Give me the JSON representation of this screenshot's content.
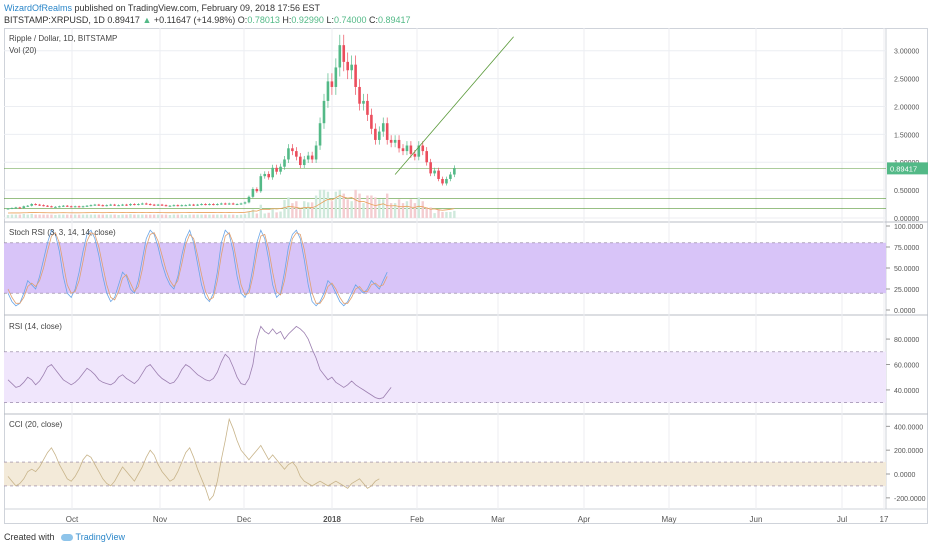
{
  "header": {
    "author": "WizardOfRealms",
    "published": "published on TradingView.com, February 09, 2018 17:56 EST",
    "symbol": "BITSTAMP:XRPUSD, 1D",
    "last": "0.89417",
    "change": "+0.11647 (+14.98%)",
    "open_label": "O:",
    "open": "0.78013",
    "high_label": "H:",
    "high": "0.92990",
    "low_label": "L:",
    "low": "0.74000",
    "close_label": "C:",
    "close": "0.89417"
  },
  "colors": {
    "up": "#53b987",
    "down": "#eb4d5c",
    "grid": "#eceef2",
    "band": "#d8c4f8",
    "rsi_band": "#f0e6fc",
    "cci_band": "#f3ead9",
    "stoch_k": "#6aa6e8",
    "stoch_d": "#e0a070",
    "rsi": "#9c7fb0",
    "cci": "#c8b48a",
    "trend": "#5a9a3a",
    "price_tag": "#53b987"
  },
  "footer": {
    "created_with": "Created with",
    "brand": "TradingView",
    "logo_icon": "cloud-icon"
  },
  "chart_data": [
    {
      "type": "candlestick",
      "title": "Ripple / Dollar, 1D, BITSTAMP",
      "subtitle": "Vol (20)",
      "yticks": [
        "3.00000",
        "2.50000",
        "2.00000",
        "1.50000",
        "1.00000",
        "0.50000",
        "0.00000"
      ],
      "ylim": [
        0,
        3.3
      ],
      "last_price_tag": "0.89417",
      "horizontal_levels": [
        0.89,
        0.35,
        0.17
      ],
      "trendline": [
        [
          98,
          0.78
        ],
        [
          128,
          3.25
        ]
      ],
      "volume_ma_color": "#e8a05a",
      "weekly_close": [
        0.17,
        0.18,
        0.19,
        0.18,
        0.21,
        0.22,
        0.25,
        0.24,
        0.23,
        0.22,
        0.21,
        0.2,
        0.2,
        0.21,
        0.22,
        0.21,
        0.2,
        0.21,
        0.2,
        0.21,
        0.22,
        0.23,
        0.24,
        0.23,
        0.22,
        0.23,
        0.24,
        0.23,
        0.23,
        0.24,
        0.23,
        0.25,
        0.24,
        0.25,
        0.26,
        0.25,
        0.24,
        0.23,
        0.24,
        0.23,
        0.22,
        0.22,
        0.23,
        0.22,
        0.23,
        0.23,
        0.24,
        0.23,
        0.24,
        0.25,
        0.24,
        0.25,
        0.24,
        0.25,
        0.26,
        0.25,
        0.26,
        0.25,
        0.25,
        0.26,
        0.28,
        0.38,
        0.52,
        0.48,
        0.75,
        0.79,
        0.73,
        0.9,
        0.83,
        0.92,
        1.05,
        1.25,
        1.2,
        1.1,
        0.95,
        1.05,
        1.12,
        1.05,
        1.3,
        1.7,
        2.1,
        2.45,
        2.35,
        2.7,
        3.1,
        2.8,
        2.65,
        2.75,
        2.35,
        2.05,
        2.1,
        1.85,
        1.6,
        1.4,
        1.55,
        1.7,
        1.4,
        1.35,
        1.4,
        1.25,
        1.2,
        1.3,
        1.15,
        1.1,
        1.3,
        1.2,
        1.0,
        0.8,
        0.85,
        0.7,
        0.62,
        0.7,
        0.78,
        0.89
      ]
    },
    {
      "type": "line",
      "title": "Stoch RSI (3, 3, 14, 14, close)",
      "yticks": [
        "100.0000",
        "75.0000",
        "50.0000",
        "25.0000",
        "0.0000"
      ],
      "ylim": [
        0,
        100
      ],
      "band": [
        20,
        80
      ],
      "series": [
        {
          "values": [
            20,
            10,
            5,
            8,
            20,
            35,
            30,
            25,
            40,
            60,
            80,
            95,
            90,
            70,
            40,
            20,
            15,
            25,
            45,
            70,
            90,
            95,
            85,
            65,
            40,
            20,
            10,
            15,
            30,
            45,
            40,
            25,
            20,
            35,
            60,
            85,
            95,
            90,
            75,
            55,
            40,
            30,
            25,
            40,
            65,
            85,
            95,
            80,
            55,
            30,
            15,
            10,
            20,
            45,
            80,
            95,
            90,
            70,
            40,
            20,
            15,
            25,
            50,
            80,
            95,
            85,
            60,
            30,
            15,
            20,
            45,
            75,
            90,
            95,
            85,
            60,
            30,
            10,
            5,
            10,
            20,
            35,
            30,
            20,
            10,
            5,
            10,
            20,
            30,
            25,
            20,
            25,
            35,
            30,
            25,
            35,
            45
          ]
        },
        {
          "values": [
            25,
            15,
            8,
            8,
            15,
            28,
            32,
            28,
            35,
            50,
            70,
            88,
            92,
            80,
            55,
            30,
            20,
            22,
            35,
            58,
            82,
            92,
            90,
            75,
            52,
            30,
            15,
            12,
            22,
            38,
            42,
            32,
            22,
            28,
            48,
            75,
            90,
            92,
            82,
            65,
            48,
            35,
            28,
            35,
            55,
            78,
            90,
            85,
            65,
            42,
            22,
            12,
            15,
            35,
            65,
            88,
            92,
            80,
            55,
            30,
            18,
            20,
            40,
            68,
            88,
            90,
            72,
            45,
            22,
            18,
            35,
            62,
            85,
            92,
            90,
            72,
            45,
            20,
            8,
            8,
            15,
            28,
            32,
            25,
            15,
            8,
            8,
            15,
            25,
            28,
            22,
            22,
            30,
            32,
            28,
            30,
            40
          ]
        }
      ]
    },
    {
      "type": "line",
      "title": "RSI (14, close)",
      "yticks": [
        "80.0000",
        "60.0000",
        "40.0000"
      ],
      "ylim": [
        25,
        95
      ],
      "band": [
        30,
        70
      ],
      "series": [
        {
          "values": [
            48,
            45,
            42,
            43,
            46,
            50,
            48,
            44,
            47,
            52,
            58,
            60,
            56,
            52,
            48,
            46,
            44,
            46,
            49,
            53,
            57,
            55,
            52,
            48,
            46,
            45,
            44,
            46,
            50,
            52,
            49,
            47,
            45,
            48,
            53,
            58,
            60,
            56,
            52,
            49,
            47,
            45,
            46,
            50,
            56,
            60,
            58,
            55,
            52,
            50,
            48,
            47,
            49,
            54,
            62,
            68,
            65,
            58,
            50,
            45,
            44,
            49,
            60,
            80,
            90,
            86,
            84,
            88,
            84,
            86,
            80,
            84,
            87,
            90,
            88,
            85,
            80,
            72,
            65,
            56,
            52,
            48,
            50,
            46,
            44,
            42,
            44,
            47,
            44,
            42,
            40,
            38,
            36,
            34,
            33,
            34,
            38,
            42
          ]
        }
      ]
    },
    {
      "type": "line",
      "title": "CCI (20, close)",
      "yticks": [
        "400.0000",
        "200.0000",
        "0.0000",
        "-200.0000"
      ],
      "ylim": [
        -260,
        470
      ],
      "band": [
        -100,
        100
      ],
      "series": [
        {
          "values": [
            -20,
            -60,
            -100,
            -80,
            -40,
            20,
            40,
            20,
            60,
            120,
            180,
            220,
            160,
            80,
            20,
            -40,
            -60,
            -20,
            40,
            120,
            160,
            140,
            80,
            20,
            -40,
            -80,
            -100,
            -60,
            0,
            60,
            20,
            -20,
            -60,
            0,
            60,
            140,
            200,
            160,
            80,
            20,
            -20,
            -60,
            -40,
            20,
            100,
            180,
            220,
            140,
            40,
            -40,
            -120,
            -220,
            -180,
            -60,
            120,
            280,
            460,
            380,
            280,
            200,
            160,
            120,
            160,
            200,
            240,
            180,
            120,
            160,
            120,
            80,
            40,
            80,
            100,
            60,
            -20,
            -60,
            -80,
            -100,
            -80,
            -60,
            -80,
            -100,
            -80,
            -60,
            -80,
            -100,
            -120,
            -80,
            -60,
            -40,
            -80,
            -120,
            -100,
            -60,
            -40
          ]
        }
      ]
    }
  ],
  "time_axis": {
    "labels": [
      "Oct",
      "Nov",
      "Dec",
      "2018",
      "Feb",
      "Mar",
      "Apr",
      "May",
      "Jun",
      "Jul",
      "17"
    ],
    "bold": [
      "2018"
    ]
  }
}
